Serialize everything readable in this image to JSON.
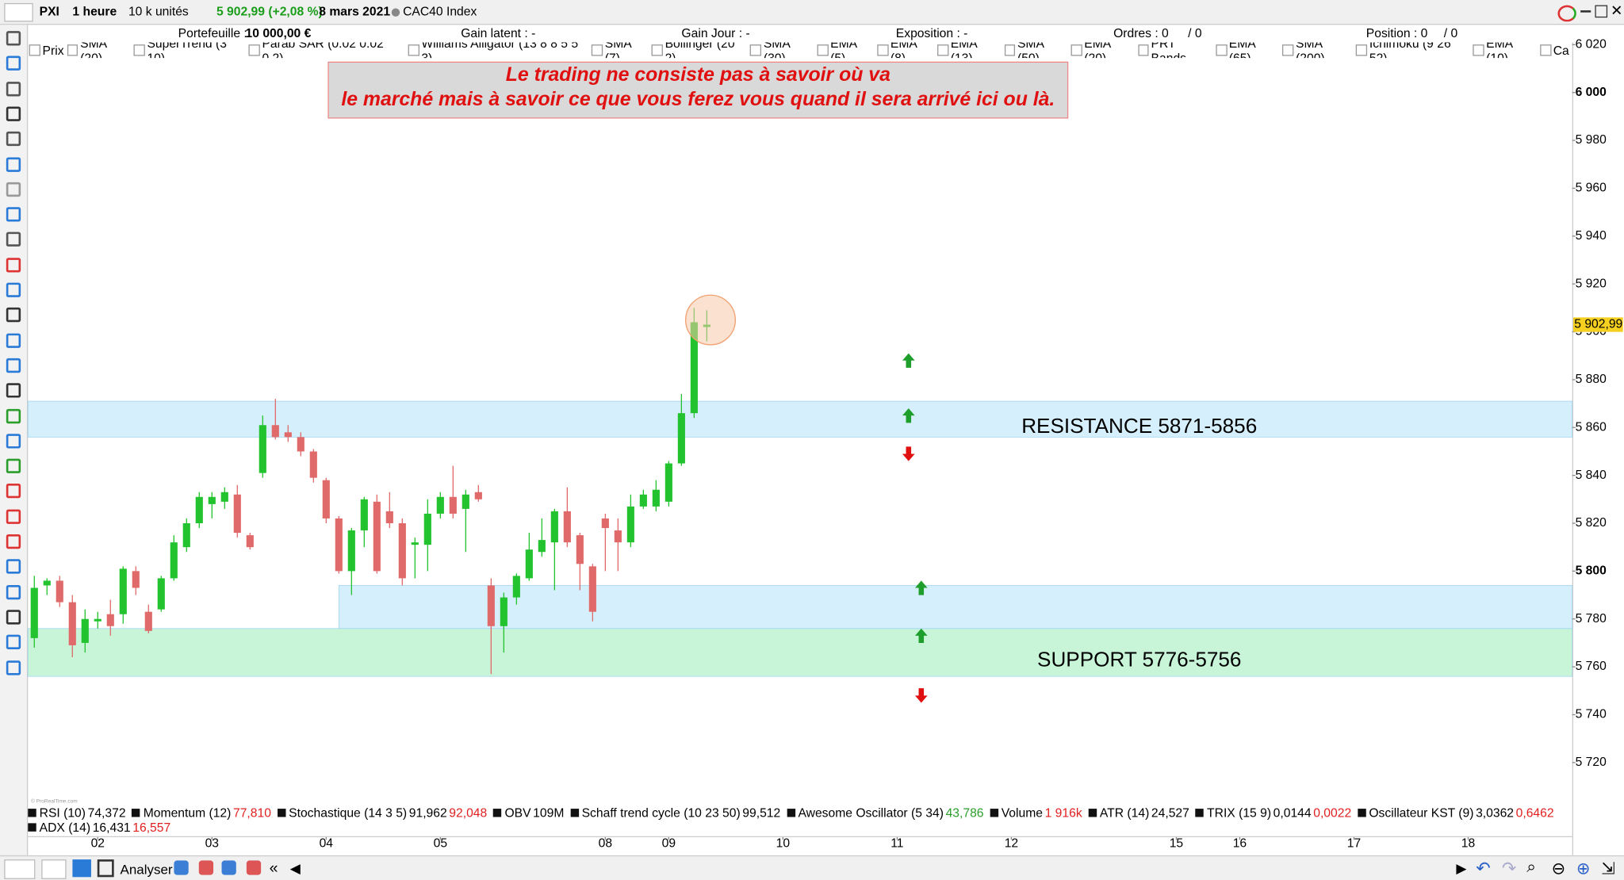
{
  "toolbar": {
    "symbol": "PXI",
    "period": "1 heure",
    "units": "10 k unités",
    "quote": "5 902,99 (+2,08 %)",
    "date": "8 mars 2021",
    "instrument": "CAC40 Index"
  },
  "info_bar": {
    "portfolio_label": "Portefeuille :",
    "portfolio_value": "10 000,00 €",
    "latent_gain": "Gain latent : -",
    "day_gain": "Gain Jour : -",
    "exposure": "Exposition : -",
    "orders": "Ordres : 0",
    "orders_2": "/ 0",
    "position": "Position : 0",
    "position_2": "/ 0"
  },
  "indicator_bar": [
    "Prix",
    "SMA (20)",
    "SuperTrend (3 10)",
    "Parab SAR (0.02 0.02 0.2)",
    "Williams Alligator (13 8 8 5 5 3)",
    "SMA (7)",
    "Bollinger (20 2)",
    "SMA (30)",
    "EMA (5)",
    "EMA (8)",
    "EMA (13)",
    "SMA (50)",
    "EMA (20)",
    "PRT Bands",
    "EMA (65)",
    "SMA (200)",
    "Ichimoku (9 26 52)",
    "EMA (10)",
    "Ca"
  ],
  "quote_box": [
    "Le trading ne consiste pas à savoir où va",
    "le marché mais à savoir ce que vous ferez vous quand il sera arrivé ici ou là."
  ],
  "chart_data": {
    "type": "candlestick",
    "open": [
      5772,
      5794,
      5796,
      5787,
      5770,
      5779,
      5782,
      5782,
      5800,
      5783,
      5784,
      5797,
      5810,
      5820,
      5828,
      5829,
      5832,
      5815,
      5841,
      5861,
      5858,
      5856,
      5850,
      5838,
      5822,
      5800,
      5817,
      5829,
      5825,
      5820,
      5811,
      5811,
      5824,
      5831,
      5826,
      5833,
      5794,
      5777,
      5789,
      5797,
      5808,
      5812,
      5825,
      5815,
      5802,
      5822,
      5817,
      5812,
      5827,
      5827,
      5829,
      5845,
      5866,
      5902
    ],
    "high": [
      5798,
      5797,
      5798,
      5790,
      5784,
      5783,
      5788,
      5802,
      5802,
      5786,
      5798,
      5815,
      5822,
      5833,
      5833,
      5835,
      5836,
      5816,
      5865,
      5872,
      5861,
      5858,
      5851,
      5839,
      5823,
      5818,
      5831,
      5832,
      5833,
      5822,
      5814,
      5830,
      5833,
      5844,
      5834,
      5836,
      5797,
      5791,
      5799,
      5816,
      5822,
      5826,
      5835,
      5816,
      5803,
      5824,
      5822,
      5832,
      5834,
      5838,
      5846,
      5874,
      5910,
      5909
    ],
    "low": [
      5768,
      5790,
      5785,
      5764,
      5766,
      5776,
      5773,
      5778,
      5790,
      5774,
      5783,
      5796,
      5808,
      5818,
      5822,
      5826,
      5814,
      5809,
      5839,
      5855,
      5854,
      5848,
      5837,
      5820,
      5799,
      5790,
      5810,
      5799,
      5818,
      5794,
      5797,
      5800,
      5822,
      5822,
      5808,
      5829,
      5757,
      5766,
      5786,
      5796,
      5806,
      5792,
      5810,
      5792,
      5779,
      5800,
      5800,
      5810,
      5826,
      5825,
      5827,
      5844,
      5864,
      5896
    ],
    "close": [
      5793,
      5796,
      5787,
      5769,
      5780,
      5780,
      5777,
      5801,
      5793,
      5775,
      5797,
      5812,
      5820,
      5831,
      5831,
      5833,
      5816,
      5810,
      5861,
      5856,
      5856,
      5850,
      5839,
      5822,
      5800,
      5817,
      5830,
      5800,
      5820,
      5797,
      5812,
      5824,
      5831,
      5824,
      5832,
      5830,
      5777,
      5789,
      5798,
      5809,
      5813,
      5825,
      5812,
      5803,
      5783,
      5818,
      5812,
      5827,
      5832,
      5834,
      5845,
      5866,
      5904,
      5902.99
    ],
    "up_color": "#22c32e",
    "down_color": "#e06a6a",
    "xlim": [
      -0.5,
      121.2
    ],
    "xticks": [
      {
        "value": 5,
        "label": "02"
      },
      {
        "value": 14,
        "label": "03"
      },
      {
        "value": 23,
        "label": "04"
      },
      {
        "value": 32,
        "label": "05"
      },
      {
        "value": 45,
        "label": "08"
      },
      {
        "value": 50,
        "label": "09"
      },
      {
        "value": 59,
        "label": "10"
      },
      {
        "value": 68,
        "label": "11"
      },
      {
        "value": 77,
        "label": "12"
      },
      {
        "value": 90,
        "label": "15"
      },
      {
        "value": 95,
        "label": "16"
      },
      {
        "value": 104,
        "label": "17"
      },
      {
        "value": 113,
        "label": "18"
      }
    ],
    "ylim": [
      5702,
      6014
    ],
    "yticks": [
      {
        "value": 5720,
        "label": "5 720"
      },
      {
        "value": 5740,
        "label": "5 740"
      },
      {
        "value": 5760,
        "label": "5 760"
      },
      {
        "value": 5780,
        "label": "5 780"
      },
      {
        "value": 5800,
        "label": "5 800"
      },
      {
        "value": 5820,
        "label": "5 820"
      },
      {
        "value": 5840,
        "label": "5 840"
      },
      {
        "value": 5860,
        "label": "5 860"
      },
      {
        "value": 5880,
        "label": "5 880"
      },
      {
        "value": 5900,
        "label": "5 900"
      },
      {
        "value": 5920,
        "label": "5 920"
      },
      {
        "value": 5940,
        "label": "5 940"
      },
      {
        "value": 5960,
        "label": "5 960"
      },
      {
        "value": 5980,
        "label": "5 980"
      },
      {
        "value": 6000,
        "label": "6 000"
      },
      {
        "value": 6020,
        "label": "6 020"
      }
    ],
    "last_price": {
      "value": 5902.99,
      "label": "5 902,99"
    },
    "zones": [
      {
        "x_from": -0.5,
        "low": 5856,
        "high": 5871,
        "color": "#d6effc",
        "label": "RESISTANCE 5871-5856"
      },
      {
        "x_from": 24,
        "low": 5776,
        "high": 5794,
        "color": "#d6effc"
      },
      {
        "x_from": -0.5,
        "low": 5756,
        "high": 5776,
        "color": "#c8f5d8",
        "label": "SUPPORT 5776-5756"
      }
    ],
    "arrows": [
      {
        "x": 68.9,
        "y": 5888,
        "direction": "up"
      },
      {
        "x": 68.9,
        "y": 5865,
        "direction": "up"
      },
      {
        "x": 68.9,
        "y": 5849,
        "direction": "down"
      },
      {
        "x": 69.9,
        "y": 5793,
        "direction": "up"
      },
      {
        "x": 69.9,
        "y": 5773,
        "direction": "up"
      },
      {
        "x": 69.9,
        "y": 5748,
        "direction": "down"
      }
    ]
  },
  "indicators_panel": [
    [
      {
        "name": "RSI (10)",
        "values": [
          "74,372"
        ]
      },
      {
        "name": "Momentum (12)",
        "values": [
          "77,810"
        ]
      },
      {
        "name": "Stochastique (14 3 5)",
        "values": [
          "91,962",
          "92,048"
        ]
      },
      {
        "name": "OBV",
        "values": [
          "109M"
        ]
      },
      {
        "name": "Schaff trend cycle (10 23 50)",
        "values": [
          "99,512"
        ]
      },
      {
        "name": "Awesome Oscillator (5 34)",
        "values": [
          "43,786"
        ]
      },
      {
        "name": "Volume",
        "values": [
          "1 916k"
        ]
      },
      {
        "name": "ATR (14)",
        "values": [
          "24,527"
        ]
      },
      {
        "name": "TRIX (15 9)",
        "values": [
          "0,0144",
          "0,0022"
        ]
      },
      {
        "name": "Oscillateur KST (9)",
        "values": [
          "3,0362",
          "0,6462"
        ]
      }
    ],
    [
      {
        "name": "ADX (14)",
        "values": [
          "16,431",
          "16,557"
        ]
      }
    ]
  ],
  "bottom_bar": {
    "analyse": "Analyser"
  }
}
